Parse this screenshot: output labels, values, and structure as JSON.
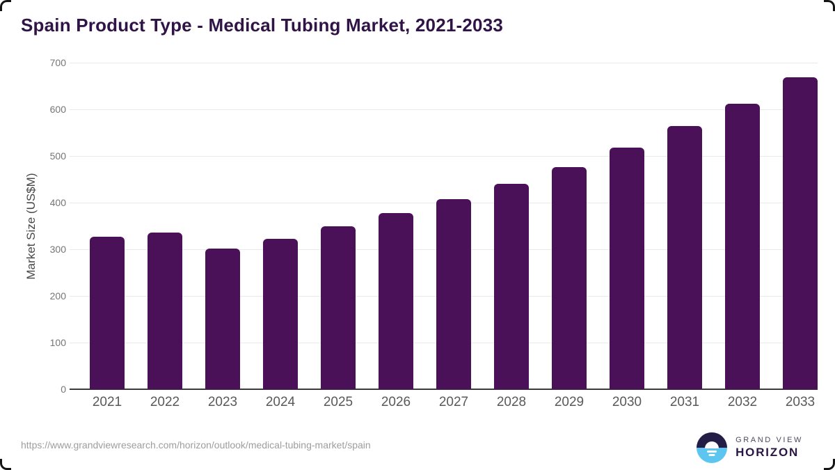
{
  "title": "Spain Product Type - Medical Tubing Market, 2021-2033",
  "chart_data": {
    "type": "bar",
    "categories": [
      "2021",
      "2022",
      "2023",
      "2024",
      "2025",
      "2026",
      "2027",
      "2028",
      "2029",
      "2030",
      "2031",
      "2032",
      "2033"
    ],
    "values": [
      327,
      336,
      302,
      323,
      349,
      377,
      407,
      441,
      476,
      518,
      564,
      612,
      668
    ],
    "title": "Spain Product Type - Medical Tubing Market, 2021-2033",
    "xlabel": "",
    "ylabel": "Market Size (US$M)",
    "ylim": [
      0,
      700
    ],
    "yticks": [
      0,
      100,
      200,
      300,
      400,
      500,
      600,
      700
    ],
    "grid": true,
    "legend": false,
    "bar_color": "#4a1058"
  },
  "footer": {
    "source_url": "https://www.grandviewresearch.com/horizon/outlook/medical-tubing-market/spain",
    "logo": {
      "line1": "GRAND VIEW",
      "line2": "HORIZON"
    }
  },
  "colors": {
    "title_color": "#301347",
    "bar_color": "#4a1058",
    "grid_color": "#e9e9e9",
    "axis_line_color": "#3a3a3a",
    "tick_color": "#757575",
    "xtick_color": "#595959",
    "ylabel_color": "#474747",
    "url_color": "#9d9d9d",
    "logo_navy": "#241d46",
    "logo_blue": "#5cc6f0",
    "logo_text": "#2a1547",
    "logo_subtext": "#4c4760"
  }
}
